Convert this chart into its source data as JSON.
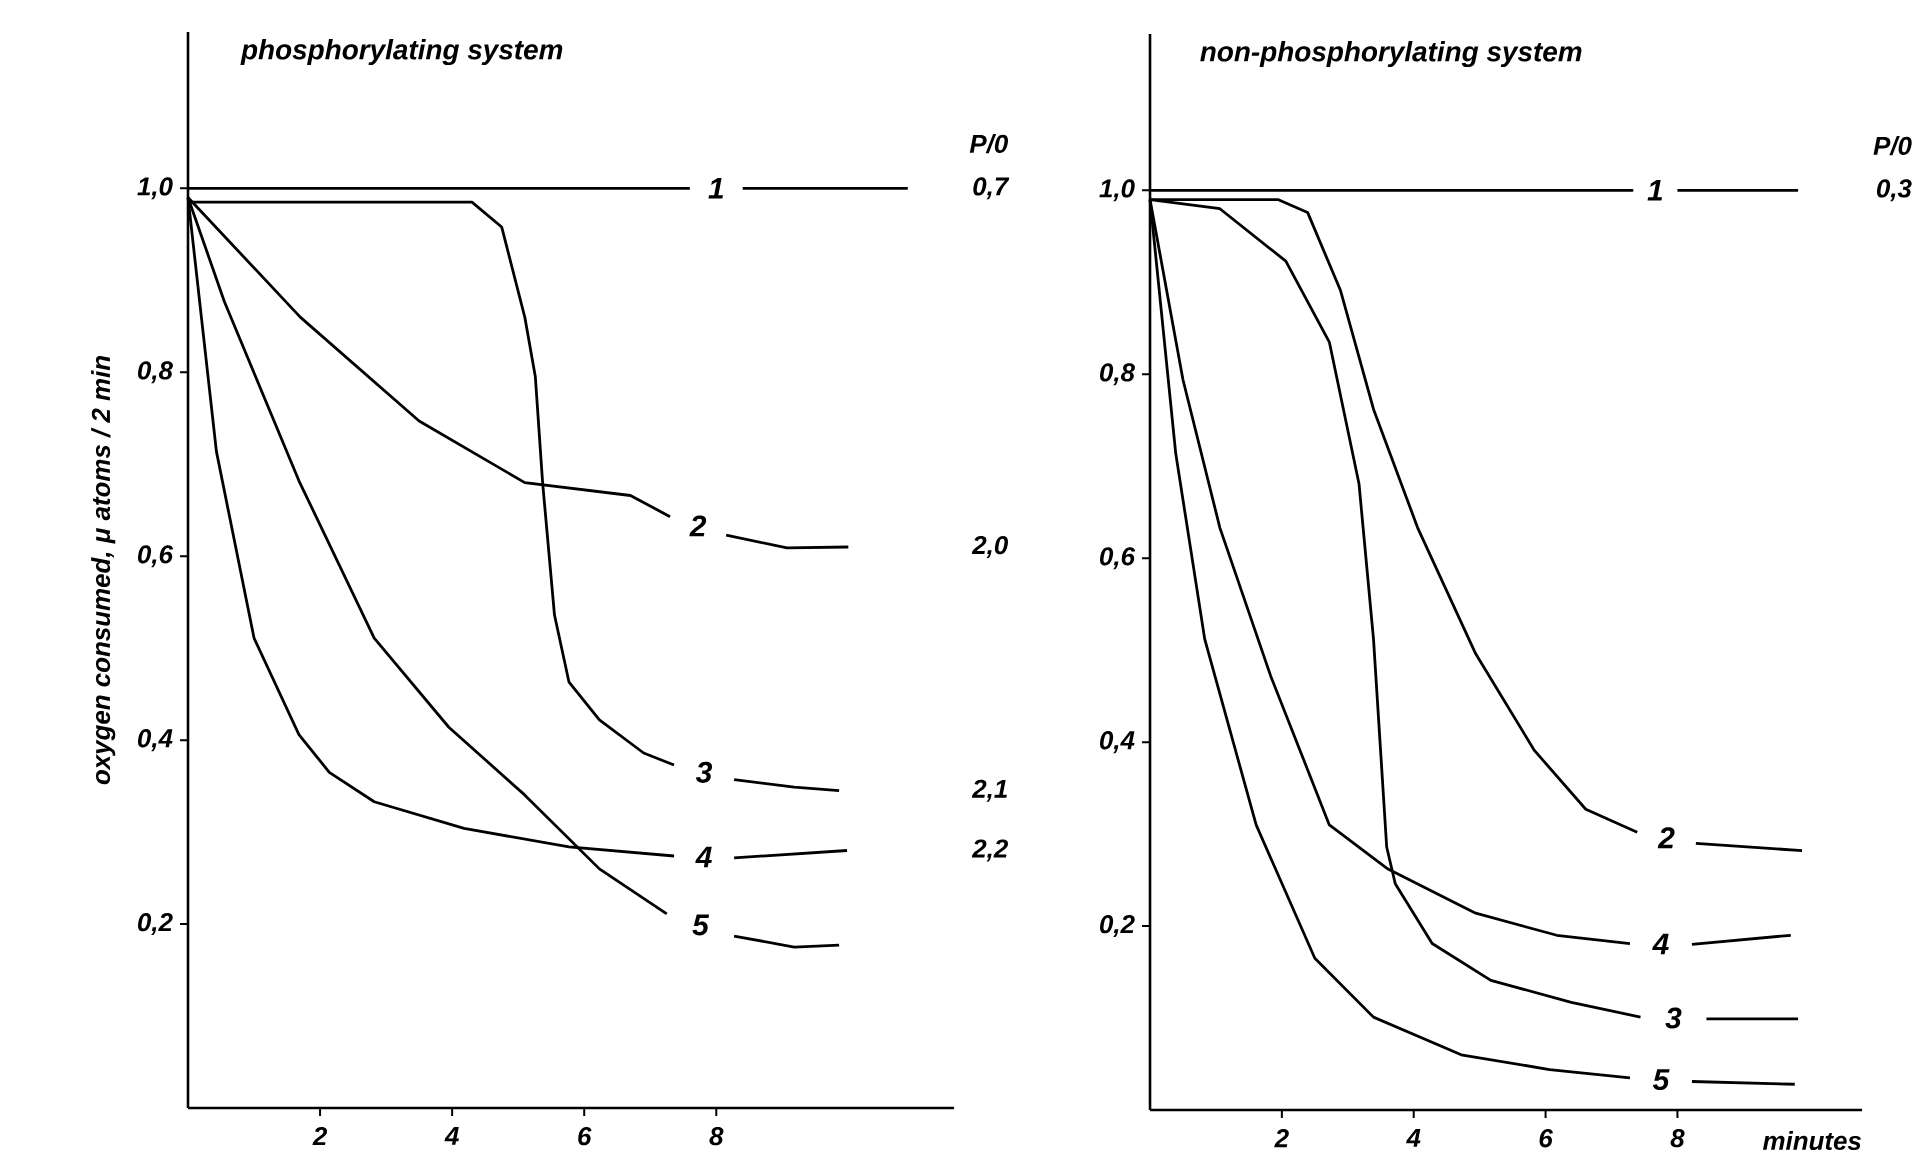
{
  "chart_data": [
    {
      "type": "line",
      "title": "phosphorylating system",
      "ylabel": "oxygen consumed,  μ atoms / 2 min",
      "marker": "none",
      "xlim": [
        0,
        11.6
      ],
      "ylim": [
        0,
        1.17
      ],
      "xticks": [
        2,
        4,
        6,
        8
      ],
      "yticks": [
        {
          "value": 0.2,
          "label": "0,2"
        },
        {
          "value": 0.4,
          "label": "0,4"
        },
        {
          "value": 0.6,
          "label": "0,6"
        },
        {
          "value": 0.8,
          "label": "0,8"
        },
        {
          "value": 1.0,
          "label": "1,0"
        }
      ],
      "series": [
        {
          "name": "1",
          "color": "#000000",
          "x": [
            0,
            7.6,
            8.0,
            8.4,
            10.9
          ],
          "values": [
            1.0,
            1.0,
            null,
            1.0,
            1.0
          ]
        },
        {
          "name": "2",
          "color": "#000000",
          "x": [
            0,
            1.7,
            3.5,
            5.1,
            6.7,
            7.3,
            7.7,
            8.15,
            9.07,
            10.0
          ],
          "values": [
            0.99,
            0.86,
            0.747,
            0.68,
            0.666,
            0.643,
            null,
            0.623,
            0.609,
            0.61
          ]
        },
        {
          "name": "3",
          "color": "#000000",
          "x": [
            0,
            4.3,
            4.75,
            5.1,
            5.26,
            5.37,
            5.55,
            5.77,
            6.23,
            6.9,
            7.36,
            7.8,
            8.27,
            9.18,
            9.86
          ],
          "values": [
            0.985,
            0.985,
            0.958,
            0.86,
            0.795,
            0.68,
            0.536,
            0.463,
            0.422,
            0.386,
            0.373,
            null,
            0.357,
            0.349,
            0.345
          ]
        },
        {
          "name": "4",
          "color": "#000000",
          "x": [
            0,
            0.43,
            1.0,
            1.68,
            2.14,
            2.82,
            4.18,
            5.77,
            7.36,
            7.8,
            8.27,
            9.98
          ],
          "values": [
            0.99,
            0.714,
            0.511,
            0.406,
            0.365,
            0.333,
            0.304,
            0.284,
            0.274,
            null,
            0.272,
            0.28
          ]
        },
        {
          "name": "5",
          "color": "#000000",
          "x": [
            0,
            0.55,
            1.68,
            2.82,
            3.95,
            5.09,
            6.23,
            7.25,
            7.75,
            8.27,
            9.18,
            9.86
          ],
          "values": [
            0.99,
            0.877,
            0.682,
            0.511,
            0.414,
            0.341,
            0.26,
            0.211,
            null,
            0.187,
            0.175,
            0.177
          ]
        }
      ],
      "annotations": [
        "P/0",
        "0,7",
        "2,0",
        "2,1",
        "2,2"
      ]
    },
    {
      "type": "line",
      "title": "non-phosphorylating system",
      "xlabel": "minutes",
      "marker": "none",
      "xlim": [
        0,
        10.8
      ],
      "ylim": [
        0,
        1.17
      ],
      "xticks": [
        2,
        4,
        6,
        8
      ],
      "yticks": [
        {
          "value": 0.2,
          "label": "0,2"
        },
        {
          "value": 0.4,
          "label": "0,4"
        },
        {
          "value": 0.6,
          "label": "0,6"
        },
        {
          "value": 0.8,
          "label": "0,8"
        },
        {
          "value": 1.0,
          "label": "1,0"
        }
      ],
      "series": [
        {
          "name": "1",
          "color": "#000000",
          "x": [
            0,
            7.33,
            7.65,
            8.0,
            9.83
          ],
          "values": [
            1.0,
            1.0,
            null,
            1.0,
            1.0
          ]
        },
        {
          "name": "2",
          "color": "#000000",
          "x": [
            0,
            1.94,
            2.39,
            2.89,
            3.39,
            4.06,
            4.94,
            5.83,
            6.61,
            7.39,
            7.85,
            8.28,
            9.89
          ],
          "values": [
            0.99,
            0.99,
            0.976,
            0.891,
            0.762,
            0.633,
            0.496,
            0.391,
            0.327,
            0.302,
            null,
            0.29,
            0.282
          ]
        },
        {
          "name": "3",
          "color": "#000000",
          "x": [
            0,
            1.06,
            2.06,
            2.72,
            3.17,
            3.39,
            3.59,
            3.72,
            4.28,
            5.17,
            6.39,
            7.44,
            7.95,
            8.44,
            9.83
          ],
          "values": [
            0.99,
            0.98,
            0.923,
            0.835,
            0.681,
            0.512,
            0.286,
            0.246,
            0.181,
            0.141,
            0.117,
            0.101,
            null,
            0.099,
            0.099
          ]
        },
        {
          "name": "4",
          "color": "#000000",
          "x": [
            0,
            0.5,
            1.06,
            1.83,
            2.72,
            3.61,
            4.94,
            6.17,
            7.28,
            7.75,
            8.22,
            9.72
          ],
          "values": [
            0.99,
            0.794,
            0.633,
            0.472,
            0.31,
            0.262,
            0.214,
            0.19,
            0.181,
            null,
            0.18,
            0.19
          ]
        },
        {
          "name": "5",
          "color": "#000000",
          "x": [
            0,
            0.39,
            0.83,
            1.61,
            2.5,
            3.39,
            4.72,
            6.06,
            7.28,
            7.75,
            8.22,
            9.78
          ],
          "values": [
            0.99,
            0.714,
            0.512,
            0.31,
            0.165,
            0.101,
            0.06,
            0.044,
            0.035,
            null,
            0.031,
            0.028
          ]
        }
      ],
      "annotations": [
        "P/0",
        "0,3"
      ]
    }
  ]
}
